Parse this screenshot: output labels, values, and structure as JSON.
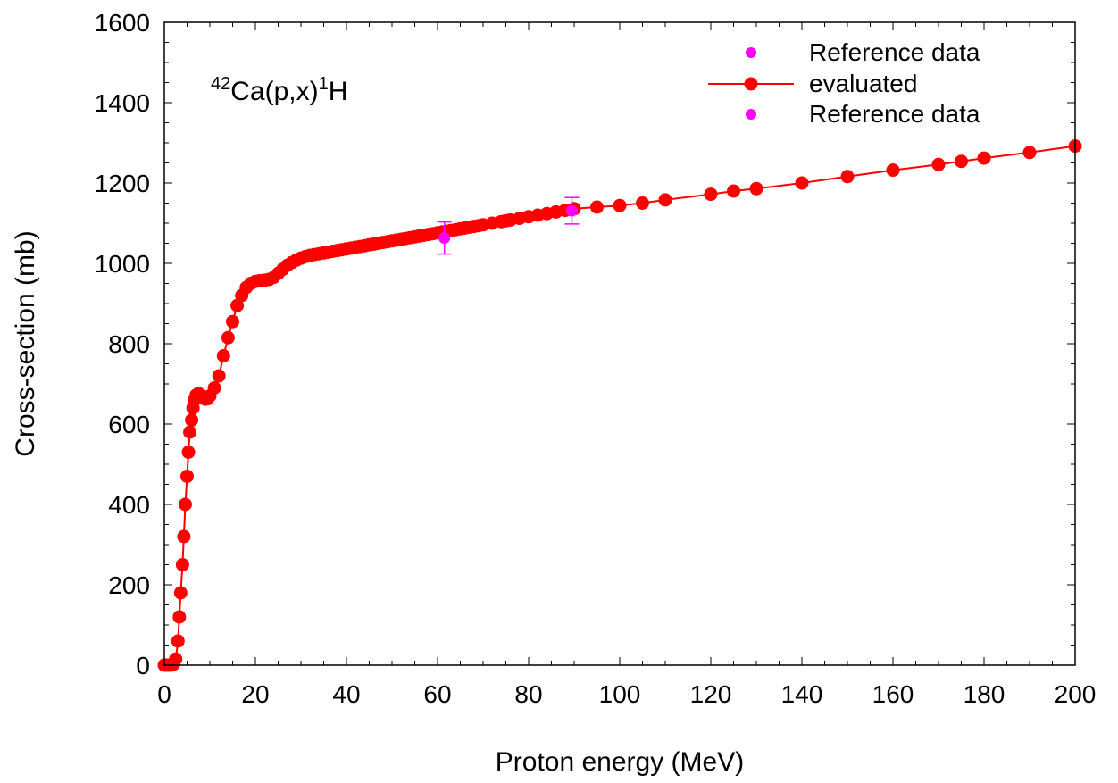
{
  "chart_data": {
    "type": "scatter",
    "annotation": {
      "mass": "42",
      "body": "Ca(p,x)",
      "sup": "1",
      "tail": "H"
    },
    "xlabel": "Proton energy (MeV)",
    "ylabel": "Cross-section (mb)",
    "xlim": [
      0,
      200
    ],
    "ylim": [
      0,
      1600
    ],
    "x_ticks": [
      0,
      20,
      40,
      60,
      80,
      100,
      120,
      140,
      160,
      180,
      200
    ],
    "y_ticks": [
      0,
      200,
      400,
      600,
      800,
      1000,
      1200,
      1400,
      1600
    ],
    "grid": false,
    "legend_position": "top-right",
    "legend": [
      {
        "label": "Reference data",
        "style": "marker",
        "color": "#ff00ff"
      },
      {
        "label": "evaluated",
        "style": "line-marker",
        "color": "#ff0000"
      },
      {
        "label": "Reference data",
        "style": "marker",
        "color": "#ff00ff"
      }
    ],
    "series": [
      {
        "name": "evaluated",
        "color": "#ff0000",
        "x": [
          0,
          0.5,
          1.0,
          1.5,
          2.0,
          2.5,
          3.0,
          3.3,
          3.6,
          4.0,
          4.3,
          4.6,
          5.0,
          5.3,
          5.6,
          6.0,
          6.3,
          6.6,
          7.0,
          7.5,
          8.0,
          8.5,
          9.0,
          9.5,
          10.0,
          11.0,
          12.0,
          13.0,
          14.0,
          15.0,
          16.0,
          17.0,
          18.0,
          19.0,
          20.0,
          21.0,
          22.0,
          23.0,
          24.0,
          25.0,
          26.0,
          27.0,
          28.0,
          29.0,
          30.0,
          31.0,
          32.0,
          33.0,
          34.0,
          35.0,
          36.0,
          37.0,
          38.0,
          39.0,
          40.0,
          41.0,
          42.0,
          43.0,
          44.0,
          45.0,
          46.0,
          47.0,
          48.0,
          49.0,
          50.0,
          51.0,
          52.0,
          53.0,
          54.0,
          55.0,
          56.0,
          57.0,
          58.0,
          59.0,
          60.0,
          61.0,
          62.0,
          63.0,
          64.0,
          65.0,
          66.0,
          67.0,
          68.0,
          69.0,
          70.0,
          72.0,
          74.0,
          75.0,
          76.0,
          78.0,
          80.0,
          82.0,
          84.0,
          86.0,
          88.0,
          90.0,
          95.0,
          100.0,
          105.0,
          110.0,
          120.0,
          125.0,
          130.0,
          140.0,
          150.0,
          160.0,
          170.0,
          175.0,
          180.0,
          190.0,
          200.0
        ],
        "y": [
          0,
          0,
          0,
          0,
          2,
          15,
          60,
          120,
          180,
          250,
          320,
          400,
          470,
          530,
          580,
          610,
          640,
          660,
          672,
          676,
          672,
          665,
          662,
          663,
          670,
          690,
          720,
          770,
          815,
          855,
          895,
          920,
          940,
          950,
          955,
          957,
          958,
          960,
          965,
          975,
          985,
          995,
          1002,
          1008,
          1013,
          1017,
          1020,
          1022,
          1024,
          1026,
          1028,
          1030,
          1032,
          1034,
          1036,
          1038,
          1040,
          1042,
          1044,
          1046,
          1048,
          1050,
          1052,
          1054,
          1056,
          1058,
          1060,
          1062,
          1064,
          1066,
          1068,
          1070,
          1072,
          1074,
          1076,
          1078,
          1080,
          1082,
          1084,
          1086,
          1088,
          1090,
          1092,
          1094,
          1096,
          1100,
          1104,
          1106,
          1108,
          1112,
          1116,
          1120,
          1124,
          1128,
          1132,
          1136,
          1140,
          1144,
          1150,
          1158,
          1172,
          1180,
          1186,
          1200,
          1216,
          1232,
          1246,
          1254,
          1262,
          1276,
          1292
        ]
      },
      {
        "name": "Reference data",
        "color": "#ff00ff",
        "x": [
          61.5,
          89.5
        ],
        "y": [
          1063,
          1131
        ],
        "err": [
          40,
          33
        ]
      }
    ]
  }
}
